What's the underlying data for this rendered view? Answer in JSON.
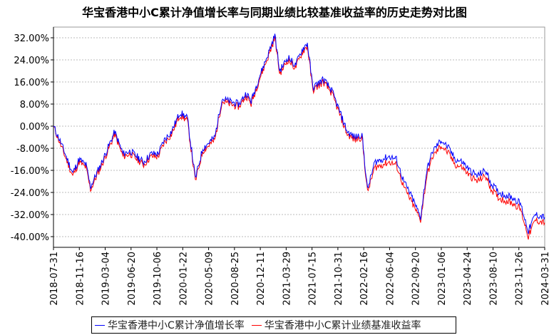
{
  "chart_data": {
    "type": "line",
    "title": "华宝香港中小C累计净值增长率与同期业绩比较基准收益率的历史走势对比图",
    "ylim": [
      -44,
      36
    ],
    "yticks": [
      "32.00%",
      "24.00%",
      "16.00%",
      "8.00%",
      "0.00%",
      "-8.00%",
      "-16.00%",
      "-24.00%",
      "-32.00%",
      "-40.00%"
    ],
    "ytick_values": [
      32,
      24,
      16,
      8,
      0,
      -8,
      -16,
      -24,
      -32,
      -40
    ],
    "xticks": [
      "2018-07-31",
      "2018-11-16",
      "2019-03-04",
      "2019-06-20",
      "2019-10-06",
      "2020-01-22",
      "2020-05-09",
      "2020-08-25",
      "2020-12-11",
      "2021-03-29",
      "2021-07-15",
      "2021-10-31",
      "2022-02-16",
      "2022-06-04",
      "2022-09-20",
      "2023-01-06",
      "2023-04-24",
      "2023-08-10",
      "2023-11-26",
      "2024-03-31"
    ],
    "grid": true,
    "legend_position": "bottom",
    "x": [
      "2018-07-31",
      "2018-08-31",
      "2018-10-20",
      "2018-11-16",
      "2018-12-15",
      "2019-01-03",
      "2019-02-25",
      "2019-04-15",
      "2019-05-20",
      "2019-06-20",
      "2019-08-15",
      "2019-09-15",
      "2019-10-15",
      "2019-11-10",
      "2019-12-10",
      "2020-01-15",
      "2020-02-15",
      "2020-03-20",
      "2020-04-20",
      "2020-06-10",
      "2020-07-10",
      "2020-08-10",
      "2020-09-20",
      "2020-10-20",
      "2020-11-10",
      "2020-12-15",
      "2021-01-20",
      "2021-02-18",
      "2021-03-10",
      "2021-04-15",
      "2021-05-15",
      "2021-06-15",
      "2021-07-05",
      "2021-07-28",
      "2021-09-10",
      "2021-10-15",
      "2021-11-15",
      "2021-12-20",
      "2022-01-20",
      "2022-02-20",
      "2022-03-15",
      "2022-04-15",
      "2022-05-15",
      "2022-06-15",
      "2022-07-15",
      "2022-08-15",
      "2022-09-20",
      "2022-10-25",
      "2022-11-20",
      "2022-12-15",
      "2023-01-20",
      "2023-02-20",
      "2023-03-20",
      "2023-04-20",
      "2023-05-20",
      "2023-06-20",
      "2023-07-25",
      "2023-08-20",
      "2023-09-20",
      "2023-10-20",
      "2023-11-20",
      "2023-12-20",
      "2024-01-22",
      "2024-02-20",
      "2024-03-31"
    ],
    "series": [
      {
        "name": "华宝香港中小C累计净值增长率",
        "color": "#0000ff",
        "values": [
          0,
          -6,
          -17,
          -12,
          -14,
          -22,
          -12,
          -2,
          -10,
          -9,
          -13,
          -10,
          -10,
          -5,
          -2,
          5,
          3,
          -19,
          -8,
          -4,
          10,
          9,
          8,
          12,
          9,
          18,
          26,
          33,
          20,
          25,
          22,
          28,
          30,
          14,
          17,
          13,
          6,
          -2,
          -4,
          -3,
          -23,
          -13,
          -12,
          -11,
          -12,
          -20,
          -26,
          -33,
          -16,
          -9,
          -5,
          -8,
          -12,
          -13,
          -16,
          -18,
          -16,
          -21,
          -24,
          -25,
          -26,
          -28,
          -38,
          -32,
          -33
        ]
      },
      {
        "name": "华宝香港中小C累计业绩基准收益率",
        "color": "#ff0000",
        "values": [
          0,
          -7,
          -18,
          -13,
          -15,
          -23,
          -13,
          -3,
          -11,
          -10,
          -14,
          -11,
          -11,
          -6,
          -3,
          4,
          2,
          -20,
          -9,
          -5,
          9,
          8,
          7,
          11,
          8,
          17,
          25,
          32,
          19,
          24,
          21,
          27,
          29,
          13,
          16,
          12,
          5,
          -3,
          -5,
          -4,
          -24,
          -15,
          -14,
          -13,
          -14,
          -22,
          -28,
          -34,
          -18,
          -11,
          -7,
          -10,
          -14,
          -15,
          -18,
          -20,
          -18,
          -23,
          -26,
          -27,
          -28,
          -30,
          -40,
          -34,
          -35
        ]
      }
    ]
  }
}
